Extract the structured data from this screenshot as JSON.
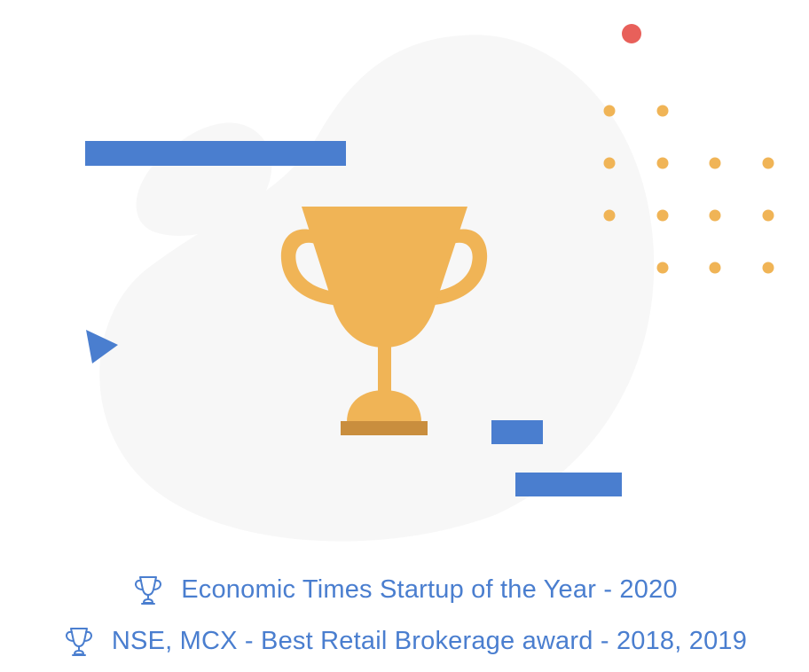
{
  "colors": {
    "accent_blue": "#4A7ECF",
    "trophy_gold": "#F0B456",
    "trophy_base": "#C98E3E",
    "dot_red": "#E8605A",
    "blob_gray": "#F7F7F7",
    "text_blue": "#4A7ECF"
  },
  "illustration": {
    "icon": "trophy-icon"
  },
  "awards": [
    {
      "icon": "trophy-outline-icon",
      "text": "Economic Times Startup of the Year - 2020"
    },
    {
      "icon": "trophy-outline-icon",
      "text": "NSE, MCX - Best Retail Brokerage award - 2018, 2019"
    }
  ]
}
